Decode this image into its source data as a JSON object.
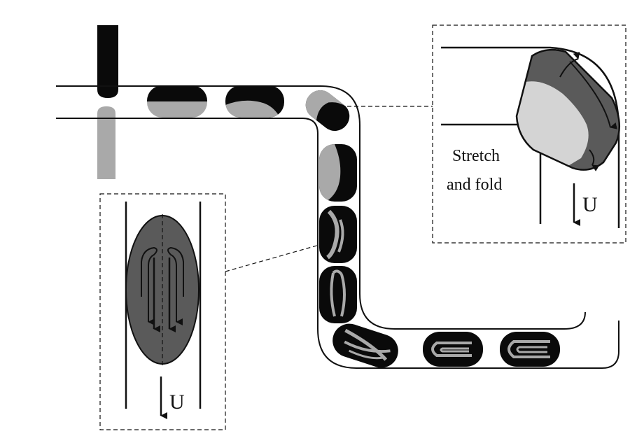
{
  "labels": {
    "stretch_line1": "Stretch",
    "stretch_line2": "and fold",
    "velocity_symbol": "U"
  },
  "colors": {
    "dark_fluid": "#0a0a0a",
    "light_fluid": "#a9a9a9",
    "droplet_gray": "#5a5a5a",
    "pale_fluid": "#d4d4d4"
  }
}
